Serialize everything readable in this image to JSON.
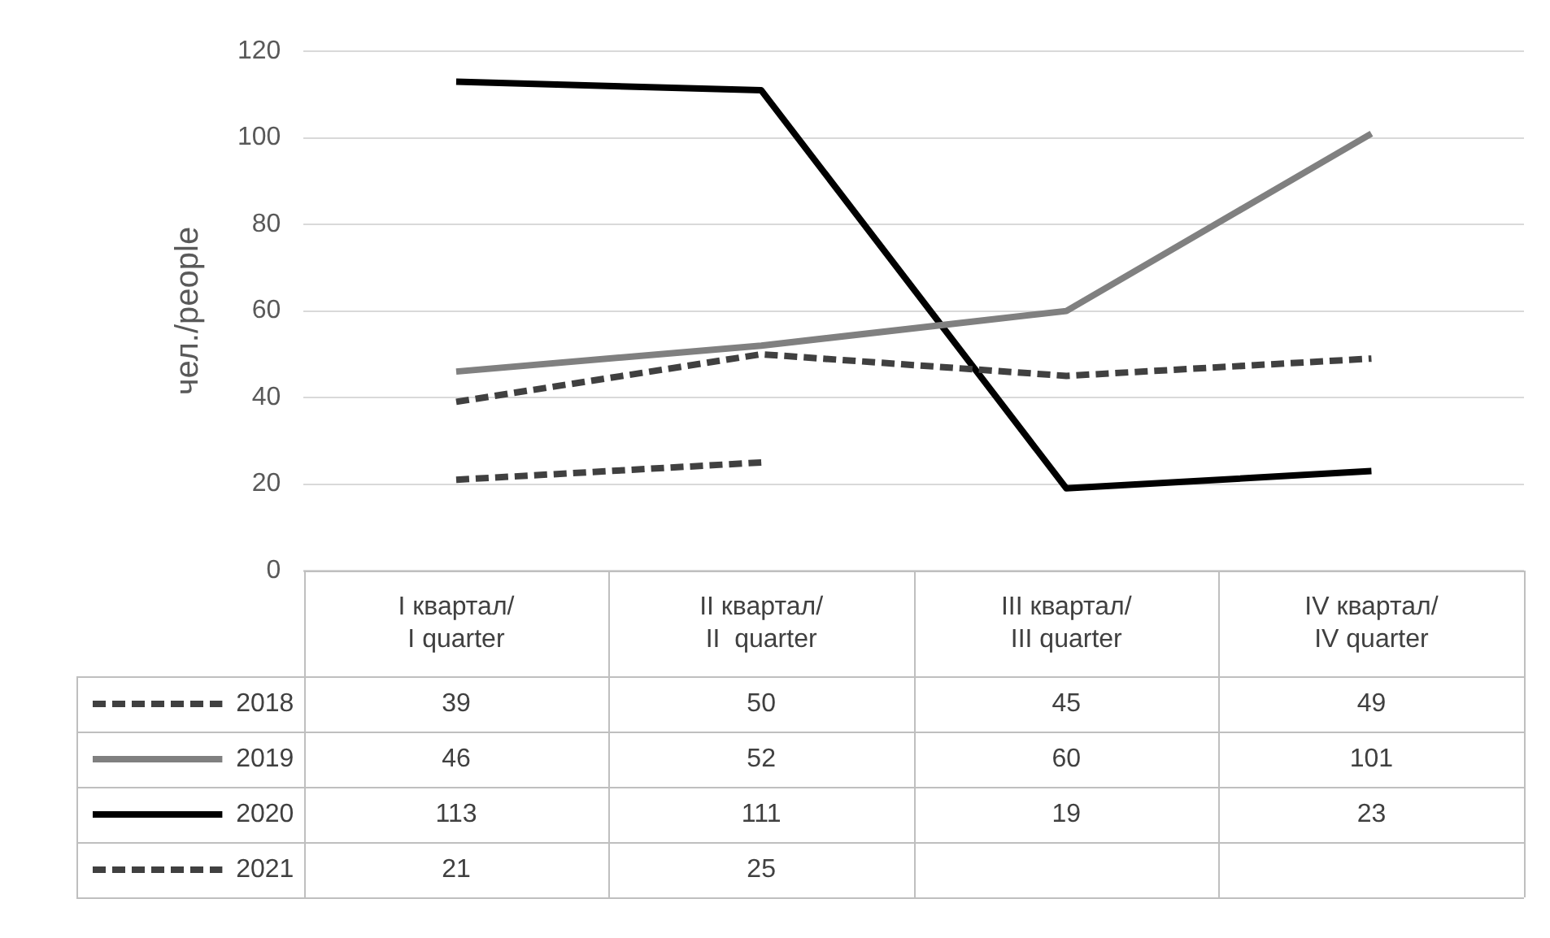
{
  "chart_data": {
    "type": "line",
    "ylabel": "чел./people",
    "categories": [
      "I квартал/\nI quarter",
      "II квартал/\nII  quarter",
      "III квартал/\nIII quarter",
      "IV квартал/\nIV quarter"
    ],
    "series": [
      {
        "name": "2018",
        "color": "#404040",
        "line_style": "dashed",
        "values": [
          39,
          50,
          45,
          49
        ]
      },
      {
        "name": "2019",
        "color": "#808080",
        "line_style": "solid",
        "values": [
          46,
          52,
          60,
          101
        ]
      },
      {
        "name": "2020",
        "color": "#000000",
        "line_style": "solid",
        "values": [
          113,
          111,
          19,
          23
        ]
      },
      {
        "name": "2021",
        "color": "#404040",
        "line_style": "dashed",
        "values": [
          21,
          25,
          null,
          null
        ]
      }
    ],
    "ylim": [
      0,
      120
    ],
    "yticks": [
      0,
      20,
      40,
      60,
      80,
      100,
      120
    ],
    "grid": "y",
    "legend": "bottom",
    "data_labels": true,
    "marker": "none"
  }
}
